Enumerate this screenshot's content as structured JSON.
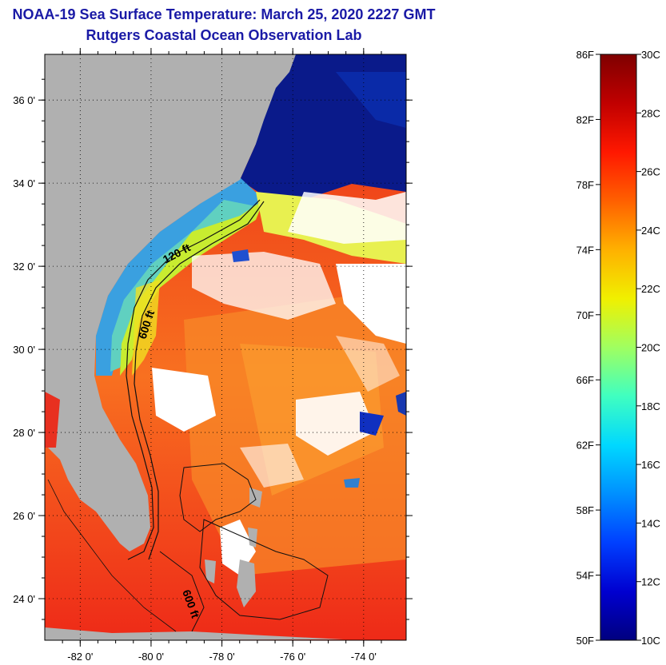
{
  "title": "NOAA-19 Sea Surface Temperature:  March 25, 2020 2227 GMT",
  "subtitle": "Rutgers Coastal Ocean Observation Lab",
  "lat_labels": [
    "36 0'",
    "34 0'",
    "32 0'",
    "30 0'",
    "28 0'",
    "26 0'",
    "24 0'"
  ],
  "lat_values": [
    36,
    34,
    32,
    30,
    28,
    26,
    24
  ],
  "lon_labels": [
    "-82 0'",
    "-80 0'",
    "-78 0'",
    "-76 0'",
    "-74 0'"
  ],
  "lon_values": [
    -82,
    -80,
    -78,
    -76,
    -74
  ],
  "contour_labels": {
    "c120": "120 ft",
    "c600a": "600 ft",
    "c600b": "600 ft"
  },
  "colorbar": {
    "f_labels": [
      "86F",
      "82F",
      "78F",
      "74F",
      "70F",
      "66F",
      "62F",
      "58F",
      "54F",
      "50F"
    ],
    "c_labels": [
      "30C",
      "28C",
      "26C",
      "24C",
      "22C",
      "20C",
      "18C",
      "16C",
      "14C",
      "12C",
      "10C"
    ],
    "c_min": 10,
    "c_max": 30,
    "colors": [
      "#00007f",
      "#0000d0",
      "#0040ff",
      "#0090ff",
      "#00d8ff",
      "#40ffc0",
      "#a0ff60",
      "#f0f000",
      "#ffb000",
      "#ff6000",
      "#ff1800",
      "#c00000",
      "#7f0000"
    ]
  },
  "colors": {
    "land": "#b0b0b0",
    "cloud": "#ffffff",
    "title": "#1a1aa6"
  }
}
